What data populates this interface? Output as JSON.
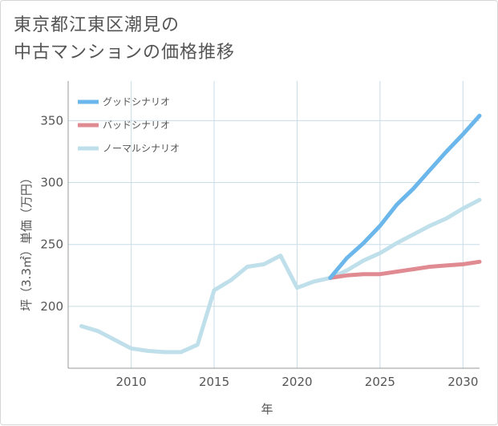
{
  "title": {
    "line1": "東京都江東区潮見の",
    "line2": "中古マンションの価格推移"
  },
  "colors": {
    "good": "#6bb6ea",
    "bad": "#e08a91",
    "normal": "#bfdfeb",
    "grid": "#c9dde8",
    "axis": "#999999",
    "text": "#555555"
  },
  "chart_data": {
    "type": "line",
    "title": "東京都江東区潮見の中古マンションの価格推移",
    "xlabel": "年",
    "ylabel": "坪（3.3㎡）単価（万円）",
    "xlim": [
      2006.2,
      2031
    ],
    "ylim": [
      150,
      382
    ],
    "xticks": [
      2010,
      2015,
      2020,
      2025,
      2030
    ],
    "yticks": [
      200,
      250,
      300,
      350
    ],
    "grid": true,
    "legend_position": "top-left",
    "series": [
      {
        "name": "グッドシナリオ",
        "color_key": "good",
        "x": [
          2022,
          2023,
          2024,
          2025,
          2026,
          2027,
          2028,
          2029,
          2030,
          2031
        ],
        "y": [
          223,
          239,
          251,
          265,
          282,
          295,
          310,
          325,
          339,
          354
        ]
      },
      {
        "name": "バッドシナリオ",
        "color_key": "bad",
        "x": [
          2022,
          2023,
          2024,
          2025,
          2026,
          2027,
          2028,
          2029,
          2030,
          2031
        ],
        "y": [
          223,
          225,
          226,
          226,
          228,
          230,
          232,
          233,
          234,
          236
        ]
      },
      {
        "name": "ノーマルシナリオ",
        "color_key": "normal",
        "x": [
          2007,
          2008,
          2009,
          2010,
          2011,
          2012,
          2013,
          2014,
          2015,
          2016,
          2017,
          2018,
          2019,
          2020,
          2021,
          2022,
          2023,
          2024,
          2025,
          2026,
          2027,
          2028,
          2029,
          2030,
          2031
        ],
        "y": [
          184,
          180,
          173,
          166,
          164,
          163,
          163,
          169,
          213,
          221,
          232,
          234,
          241,
          215,
          220,
          223,
          229,
          237,
          243,
          251,
          258,
          265,
          271,
          279,
          286
        ]
      }
    ]
  }
}
